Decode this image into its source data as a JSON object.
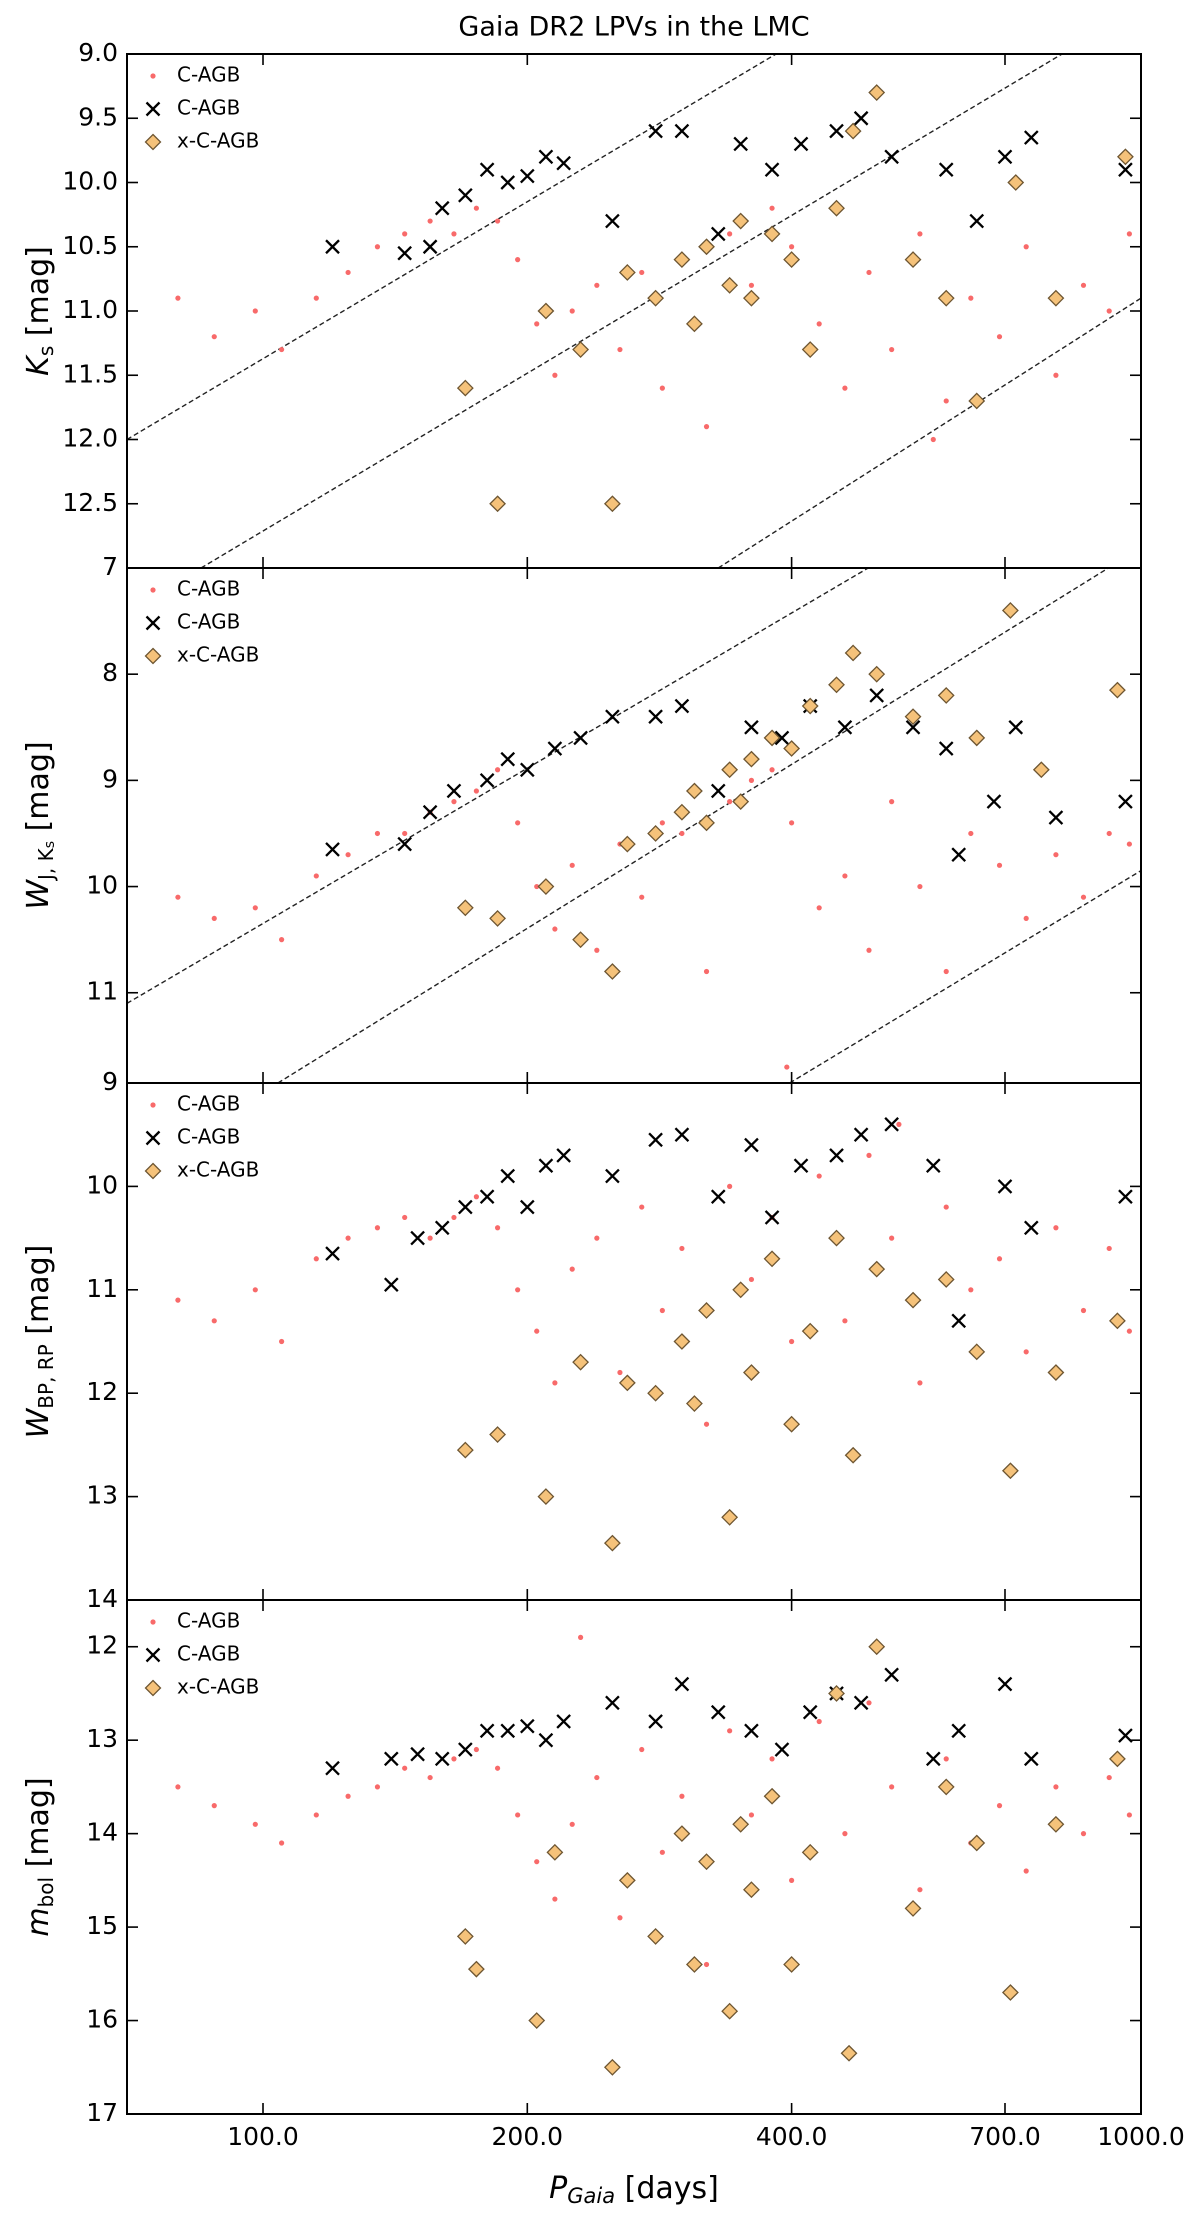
{
  "title": "Gaia DR2 LPVs in the LMC",
  "x_axis": {
    "scale": "log",
    "lim": [
      70,
      1000
    ],
    "ticks": [
      {
        "value": 100,
        "label": "100.0"
      },
      {
        "value": 200,
        "label": "200.0"
      },
      {
        "value": 400,
        "label": "400.0"
      },
      {
        "value": 700,
        "label": "700.0"
      },
      {
        "value": 1000,
        "label": "1000.0"
      }
    ],
    "label": {
      "symbol": "P",
      "sub": "Gaia",
      "unit": "[days]"
    }
  },
  "chart_data": [
    {
      "type": "scatter",
      "ylabel": {
        "symbol": "K",
        "sub": "s",
        "unit": "[mag]"
      },
      "ylim": [
        9,
        13
      ],
      "y_inverted": true,
      "yticks": [
        {
          "value": 9,
          "label": "9.0"
        },
        9.5,
        {
          "value": 10,
          "label": "10.0"
        },
        10.5,
        {
          "value": 11,
          "label": "11.0"
        },
        11.5,
        {
          "value": 12,
          "label": "12.0"
        },
        12.5
      ],
      "legend": "upper left",
      "lines": [
        {
          "x": [
            70,
            384
          ],
          "y": [
            12.0,
            9.0
          ]
        },
        {
          "x": [
            85,
            813
          ],
          "y": [
            13.0,
            9.0
          ]
        },
        {
          "x": [
            330,
            1000
          ],
          "y": [
            13.0,
            10.9
          ]
        }
      ],
      "series": [
        {
          "name": "C-AGB",
          "marker": "dot",
          "color": "#f86a6a",
          "x": [
            80,
            88,
            98,
            105,
            115,
            125,
            135,
            145,
            155,
            165,
            175,
            185,
            195,
            205,
            215,
            225,
            240,
            255,
            270,
            285,
            300,
            320,
            340,
            360,
            380,
            400,
            430,
            460,
            490,
            520,
            560,
            600,
            640,
            690,
            740,
            800,
            860,
            920,
            970,
            580
          ],
          "values": [
            10.9,
            11.2,
            11.0,
            11.3,
            10.9,
            10.7,
            10.5,
            10.4,
            10.3,
            10.4,
            10.2,
            10.3,
            10.6,
            11.1,
            11.5,
            11.0,
            10.8,
            11.3,
            10.7,
            11.6,
            10.6,
            11.9,
            10.4,
            10.8,
            10.2,
            10.5,
            11.1,
            11.6,
            10.7,
            11.3,
            10.4,
            11.7,
            10.9,
            11.2,
            10.5,
            11.5,
            10.8,
            11.0,
            10.4,
            12.0
          ]
        },
        {
          "name": "C-AGB",
          "marker": "cross",
          "color": "#000000",
          "x": [
            120,
            145,
            155,
            160,
            170,
            180,
            190,
            200,
            210,
            220,
            250,
            280,
            300,
            330,
            350,
            380,
            410,
            450,
            480,
            520,
            600,
            650,
            700,
            750,
            960
          ],
          "values": [
            10.5,
            10.55,
            10.5,
            10.2,
            10.1,
            9.9,
            10.0,
            9.95,
            9.8,
            9.85,
            10.3,
            9.6,
            9.6,
            10.4,
            9.7,
            9.9,
            9.7,
            9.6,
            9.5,
            9.8,
            9.9,
            10.3,
            9.8,
            9.65,
            9.9
          ]
        },
        {
          "name": "x-C-AGB",
          "marker": "diamond",
          "color": "#f5c27a",
          "x": [
            170,
            185,
            210,
            230,
            250,
            260,
            280,
            300,
            310,
            320,
            340,
            350,
            360,
            380,
            400,
            420,
            450,
            470,
            500,
            550,
            600,
            650,
            720,
            800,
            960
          ],
          "values": [
            11.6,
            12.5,
            11.0,
            11.3,
            12.5,
            10.7,
            10.9,
            10.6,
            11.1,
            10.5,
            10.8,
            10.3,
            10.9,
            10.4,
            10.6,
            11.3,
            10.2,
            9.6,
            9.3,
            10.6,
            10.9,
            11.7,
            10.0,
            10.9,
            9.8
          ]
        }
      ]
    },
    {
      "type": "scatter",
      "ylabel": {
        "symbol": "W",
        "sub": "J, K",
        "subsub": "s",
        "unit": "[mag]"
      },
      "ylim": [
        7,
        11.85
      ],
      "y_inverted": true,
      "yticks": [
        7,
        8,
        9,
        10,
        11
      ],
      "legend": "upper left",
      "lines": [
        {
          "x": [
            70,
            489
          ],
          "y": [
            11.1,
            7.0
          ]
        },
        {
          "x": [
            104,
            918
          ],
          "y": [
            11.85,
            7.0
          ]
        },
        {
          "x": [
            398,
            1000
          ],
          "y": [
            11.85,
            9.85
          ]
        }
      ],
      "series": [
        {
          "name": "C-AGB",
          "marker": "dot",
          "color": "#f86a6a",
          "x": [
            80,
            88,
            98,
            105,
            115,
            125,
            135,
            145,
            155,
            165,
            175,
            185,
            195,
            205,
            215,
            225,
            240,
            255,
            270,
            285,
            300,
            320,
            340,
            360,
            380,
            400,
            430,
            460,
            490,
            520,
            560,
            600,
            640,
            690,
            740,
            800,
            860,
            920,
            970,
            395
          ],
          "values": [
            10.1,
            10.3,
            10.2,
            10.5,
            9.9,
            9.7,
            9.5,
            9.5,
            9.3,
            9.2,
            9.1,
            8.9,
            9.4,
            10.0,
            10.4,
            9.8,
            10.6,
            9.6,
            10.1,
            9.4,
            9.5,
            10.8,
            9.2,
            9.0,
            8.9,
            9.4,
            10.2,
            9.9,
            10.6,
            9.2,
            10.0,
            10.8,
            9.5,
            9.8,
            10.3,
            9.7,
            10.1,
            9.5,
            9.6,
            11.7
          ]
        },
        {
          "name": "C-AGB",
          "marker": "cross",
          "color": "#000000",
          "x": [
            120,
            145,
            155,
            165,
            180,
            190,
            200,
            215,
            230,
            250,
            280,
            300,
            330,
            360,
            390,
            420,
            460,
            500,
            550,
            600,
            620,
            680,
            720,
            800,
            960
          ],
          "values": [
            9.65,
            9.6,
            9.3,
            9.1,
            9.0,
            8.8,
            8.9,
            8.7,
            8.6,
            8.4,
            8.4,
            8.3,
            9.1,
            8.5,
            8.6,
            8.3,
            8.5,
            8.2,
            8.5,
            8.7,
            9.7,
            9.2,
            8.5,
            9.35,
            9.2
          ]
        },
        {
          "name": "x-C-AGB",
          "marker": "diamond",
          "color": "#f5c27a",
          "x": [
            170,
            185,
            210,
            230,
            250,
            260,
            280,
            300,
            310,
            320,
            340,
            350,
            360,
            380,
            400,
            420,
            450,
            470,
            500,
            550,
            600,
            650,
            710,
            770,
            940
          ],
          "values": [
            10.2,
            10.3,
            10.0,
            10.5,
            10.8,
            9.6,
            9.5,
            9.3,
            9.1,
            9.4,
            8.9,
            9.2,
            8.8,
            8.6,
            8.7,
            8.3,
            8.1,
            7.8,
            8.0,
            8.4,
            8.2,
            8.6,
            7.4,
            8.9,
            8.15
          ]
        }
      ]
    },
    {
      "type": "scatter",
      "ylabel": {
        "symbol": "W",
        "sub": "BP, RP",
        "unit": "[mag]"
      },
      "ylim": [
        9,
        14
      ],
      "y_inverted": true,
      "yticks": [
        9,
        10,
        11,
        12,
        13,
        14
      ],
      "legend": "upper left",
      "lines": [],
      "series": [
        {
          "name": "C-AGB",
          "marker": "dot",
          "color": "#f86a6a",
          "x": [
            80,
            88,
            98,
            105,
            115,
            125,
            135,
            145,
            155,
            165,
            175,
            185,
            195,
            205,
            215,
            225,
            240,
            255,
            270,
            285,
            300,
            320,
            340,
            360,
            380,
            400,
            430,
            460,
            490,
            520,
            560,
            600,
            640,
            690,
            740,
            800,
            860,
            920,
            970,
            530
          ],
          "values": [
            11.1,
            11.3,
            11.0,
            11.5,
            10.7,
            10.5,
            10.4,
            10.3,
            10.5,
            10.3,
            10.1,
            10.4,
            11.0,
            11.4,
            11.9,
            10.8,
            10.5,
            11.8,
            10.2,
            11.2,
            10.6,
            12.3,
            10.0,
            10.9,
            10.3,
            11.5,
            9.9,
            11.3,
            9.7,
            10.5,
            11.9,
            10.2,
            11.0,
            10.7,
            11.6,
            10.4,
            11.2,
            10.6,
            11.4,
            9.4
          ]
        },
        {
          "name": "C-AGB",
          "marker": "cross",
          "color": "#000000",
          "x": [
            120,
            140,
            150,
            160,
            170,
            180,
            190,
            200,
            210,
            220,
            250,
            280,
            300,
            330,
            360,
            380,
            410,
            450,
            480,
            520,
            580,
            620,
            700,
            750,
            960
          ],
          "values": [
            10.65,
            10.95,
            10.5,
            10.4,
            10.2,
            10.1,
            9.9,
            10.2,
            9.8,
            9.7,
            9.9,
            9.55,
            9.5,
            10.1,
            9.6,
            10.3,
            9.8,
            9.7,
            9.5,
            9.4,
            9.8,
            11.3,
            10.0,
            10.4,
            10.1
          ]
        },
        {
          "name": "x-C-AGB",
          "marker": "diamond",
          "color": "#f5c27a",
          "x": [
            170,
            185,
            210,
            230,
            250,
            260,
            280,
            300,
            310,
            320,
            340,
            350,
            360,
            380,
            400,
            420,
            450,
            470,
            500,
            550,
            600,
            650,
            710,
            800,
            940
          ],
          "values": [
            12.55,
            12.4,
            13.0,
            11.7,
            13.45,
            11.9,
            12.0,
            11.5,
            12.1,
            11.2,
            13.2,
            11.0,
            11.8,
            10.7,
            12.3,
            11.4,
            10.5,
            12.6,
            10.8,
            11.1,
            10.9,
            11.6,
            12.75,
            11.8,
            11.3
          ]
        }
      ]
    },
    {
      "type": "scatter",
      "ylabel": {
        "symbol": "m",
        "sub": "bol",
        "unit": "[mag]"
      },
      "ylim": [
        11.5,
        17
      ],
      "y_inverted": true,
      "yticks": [
        12,
        13,
        14,
        15,
        16,
        17
      ],
      "legend": "upper left",
      "lines": [],
      "series": [
        {
          "name": "C-AGB",
          "marker": "dot",
          "color": "#f86a6a",
          "x": [
            80,
            88,
            98,
            105,
            115,
            125,
            135,
            145,
            155,
            165,
            175,
            185,
            195,
            205,
            215,
            225,
            240,
            255,
            270,
            285,
            300,
            320,
            340,
            360,
            380,
            400,
            430,
            460,
            490,
            520,
            560,
            600,
            640,
            690,
            740,
            800,
            860,
            920,
            970,
            230
          ],
          "values": [
            13.5,
            13.7,
            13.9,
            14.1,
            13.8,
            13.6,
            13.5,
            13.3,
            13.4,
            13.2,
            13.1,
            13.3,
            13.8,
            14.3,
            14.7,
            13.9,
            13.4,
            14.9,
            13.1,
            14.2,
            13.6,
            15.4,
            12.9,
            13.8,
            13.2,
            14.5,
            12.8,
            14.0,
            12.6,
            13.5,
            14.6,
            13.2,
            14.1,
            13.7,
            14.4,
            13.5,
            14.0,
            13.4,
            13.8,
            11.9
          ]
        },
        {
          "name": "C-AGB",
          "marker": "cross",
          "color": "#000000",
          "x": [
            120,
            140,
            150,
            160,
            170,
            180,
            190,
            200,
            210,
            220,
            250,
            280,
            300,
            330,
            360,
            390,
            420,
            450,
            480,
            520,
            580,
            620,
            700,
            750,
            960
          ],
          "values": [
            13.3,
            13.2,
            13.15,
            13.2,
            13.1,
            12.9,
            12.9,
            12.85,
            13.0,
            12.8,
            12.6,
            12.8,
            12.4,
            12.7,
            12.9,
            13.1,
            12.7,
            12.5,
            12.6,
            12.3,
            13.2,
            12.9,
            12.4,
            13.2,
            12.95
          ]
        },
        {
          "name": "x-C-AGB",
          "marker": "diamond",
          "color": "#f5c27a",
          "x": [
            170,
            175,
            205,
            215,
            250,
            260,
            280,
            300,
            310,
            320,
            340,
            350,
            360,
            380,
            400,
            420,
            450,
            465,
            500,
            550,
            600,
            650,
            710,
            800,
            940
          ],
          "values": [
            15.1,
            15.45,
            16.0,
            14.2,
            16.5,
            14.5,
            15.1,
            14.0,
            15.4,
            14.3,
            15.9,
            13.9,
            14.6,
            13.6,
            15.4,
            14.2,
            12.5,
            16.35,
            12.0,
            14.8,
            13.5,
            14.1,
            15.7,
            13.9,
            13.2
          ]
        }
      ]
    }
  ]
}
